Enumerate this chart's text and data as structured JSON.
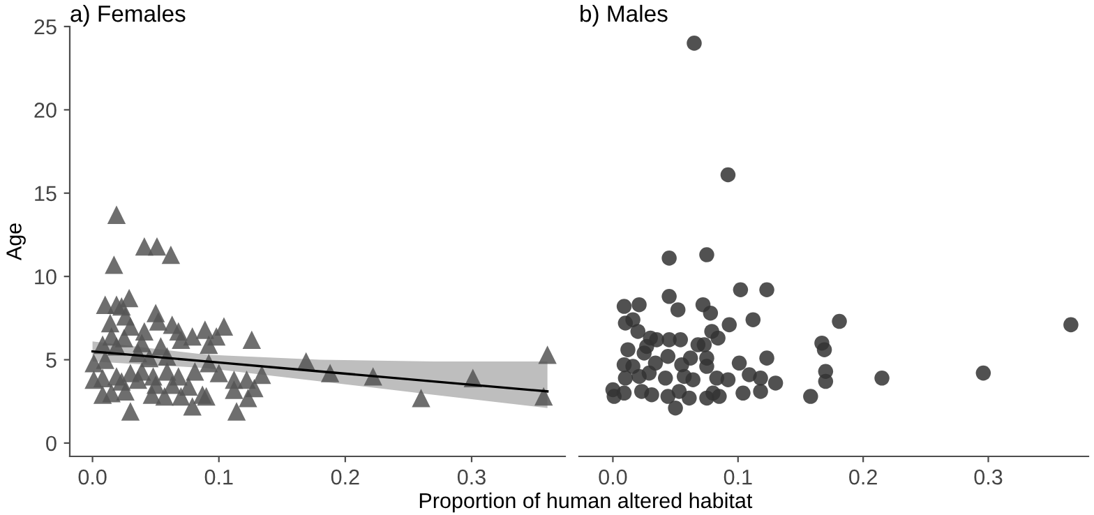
{
  "chart_data": [
    {
      "type": "scatter",
      "title": "a) Females",
      "xlabel": "Proportion of human altered habitat",
      "ylabel": "Age",
      "xlim": [
        -0.018,
        0.374
      ],
      "ylim": [
        -0.8,
        25
      ],
      "xticks": [
        {
          "value": 0,
          "label": "0.0"
        },
        0.1,
        0.2,
        0.3
      ],
      "yticks": [
        0,
        5,
        10,
        15,
        20,
        25
      ],
      "grid": false,
      "legend": false,
      "series": [
        {
          "marker": "triangle",
          "color": "#555555",
          "x": [
            0.019,
            0.041,
            0.051,
            0.062,
            0.017,
            0.01,
            0.019,
            0.029,
            0.023,
            0.05,
            0.014,
            0.026,
            0.052,
            0.03,
            0.041,
            0.063,
            0.104,
            0.015,
            0.025,
            0.039,
            0.054,
            0.068,
            0.079,
            0.089,
            0.098,
            0.07,
            0.092,
            0.126,
            0.008,
            0.019,
            0.001,
            0.01,
            0.036,
            0.045,
            0.059,
            0.092,
            0.169,
            0.188,
            0.001,
            0.008,
            0.019,
            0.03,
            0.039,
            0.048,
            0.059,
            0.068,
            0.081,
            0.1,
            0.112,
            0.122,
            0.134,
            0.023,
            0.036,
            0.05,
            0.063,
            0.076,
            0.008,
            0.015,
            0.026,
            0.047,
            0.057,
            0.07,
            0.087,
            0.09,
            0.112,
            0.128,
            0.123,
            0.03,
            0.079,
            0.114,
            0.222,
            0.26,
            0.301,
            0.357,
            0.36
          ],
          "values": [
            13.7,
            11.8,
            11.8,
            11.3,
            10.7,
            8.3,
            8.3,
            8.7,
            8.2,
            7.8,
            7.2,
            7.6,
            7.3,
            7.0,
            6.7,
            7.1,
            7.0,
            6.4,
            6.3,
            6.0,
            5.8,
            6.7,
            6.4,
            6.8,
            6.4,
            6.2,
            5.9,
            6.2,
            5.9,
            5.8,
            4.8,
            5.0,
            5.4,
            5.1,
            5.2,
            4.8,
            4.9,
            4.2,
            3.8,
            3.9,
            4.0,
            4.2,
            4.3,
            4.0,
            4.3,
            4.0,
            4.3,
            4.2,
            3.8,
            3.8,
            4.1,
            3.7,
            3.8,
            3.5,
            3.5,
            3.4,
            2.9,
            3.0,
            3.1,
            2.9,
            2.8,
            2.8,
            2.9,
            2.8,
            3.2,
            3.3,
            2.7,
            1.9,
            2.2,
            1.9,
            4.0,
            2.7,
            3.9,
            2.8,
            5.3
          ]
        },
        {
          "type": "line",
          "color": "#000000",
          "x": [
            0,
            0.09,
            0.18,
            0.27,
            0.36
          ],
          "values": [
            5.5,
            4.9,
            4.3,
            3.7,
            3.1
          ],
          "lower": [
            4.9,
            4.5,
            3.7,
            2.9,
            2.1
          ],
          "upper": [
            6.1,
            5.3,
            5.0,
            4.9,
            4.9
          ]
        }
      ]
    },
    {
      "type": "scatter",
      "title": "b) Males",
      "xlim": [
        -0.027,
        0.38
      ],
      "ylim": [
        -0.8,
        25
      ],
      "xticks": [
        {
          "value": 0,
          "label": "0.0"
        },
        0.1,
        0.2,
        0.3
      ],
      "yticks": [
        0,
        5,
        10,
        15,
        20,
        25
      ],
      "tick_labels": "x",
      "grid": false,
      "legend": false,
      "series": [
        {
          "marker": "circle",
          "color": "#333333",
          "x": [
            0.065,
            0.092,
            0.045,
            0.075,
            0.102,
            0.123,
            0.045,
            0.009,
            0.021,
            0.052,
            0.072,
            0.078,
            0.01,
            0.016,
            0.02,
            0.093,
            0.112,
            0.079,
            0.084,
            0.03,
            0.035,
            0.045,
            0.054,
            0.068,
            0.073,
            0.012,
            0.027,
            0.025,
            0.044,
            0.062,
            0.075,
            0.123,
            0.009,
            0.016,
            0.034,
            0.055,
            0.101,
            0.075,
            0.021,
            0.029,
            0.042,
            0.057,
            0.064,
            0.01,
            0.083,
            0.092,
            0.109,
            0.118,
            0.13,
            0.0,
            0.001,
            0.009,
            0.023,
            0.031,
            0.044,
            0.053,
            0.061,
            0.05,
            0.075,
            0.08,
            0.085,
            0.104,
            0.118,
            0.158,
            0.167,
            0.169,
            0.17,
            0.17,
            0.181,
            0.215,
            0.296,
            0.366
          ],
          "values": [
            24.0,
            16.1,
            11.1,
            11.3,
            9.2,
            9.2,
            8.8,
            8.2,
            8.3,
            8.0,
            8.3,
            7.8,
            7.2,
            7.4,
            6.7,
            7.1,
            7.4,
            6.7,
            6.3,
            6.3,
            6.2,
            6.2,
            6.2,
            5.9,
            5.9,
            5.6,
            5.8,
            5.4,
            5.2,
            5.1,
            5.1,
            5.1,
            4.7,
            4.6,
            4.8,
            4.7,
            4.8,
            4.6,
            4.0,
            4.2,
            3.9,
            4.0,
            3.8,
            3.9,
            3.9,
            3.8,
            4.1,
            3.9,
            3.6,
            3.2,
            2.8,
            3.0,
            3.1,
            2.9,
            2.8,
            3.1,
            2.7,
            2.1,
            2.7,
            3.0,
            2.8,
            3.0,
            3.1,
            2.8,
            6.0,
            5.6,
            4.3,
            3.7,
            7.3,
            3.9,
            4.2,
            7.1
          ]
        }
      ]
    }
  ]
}
